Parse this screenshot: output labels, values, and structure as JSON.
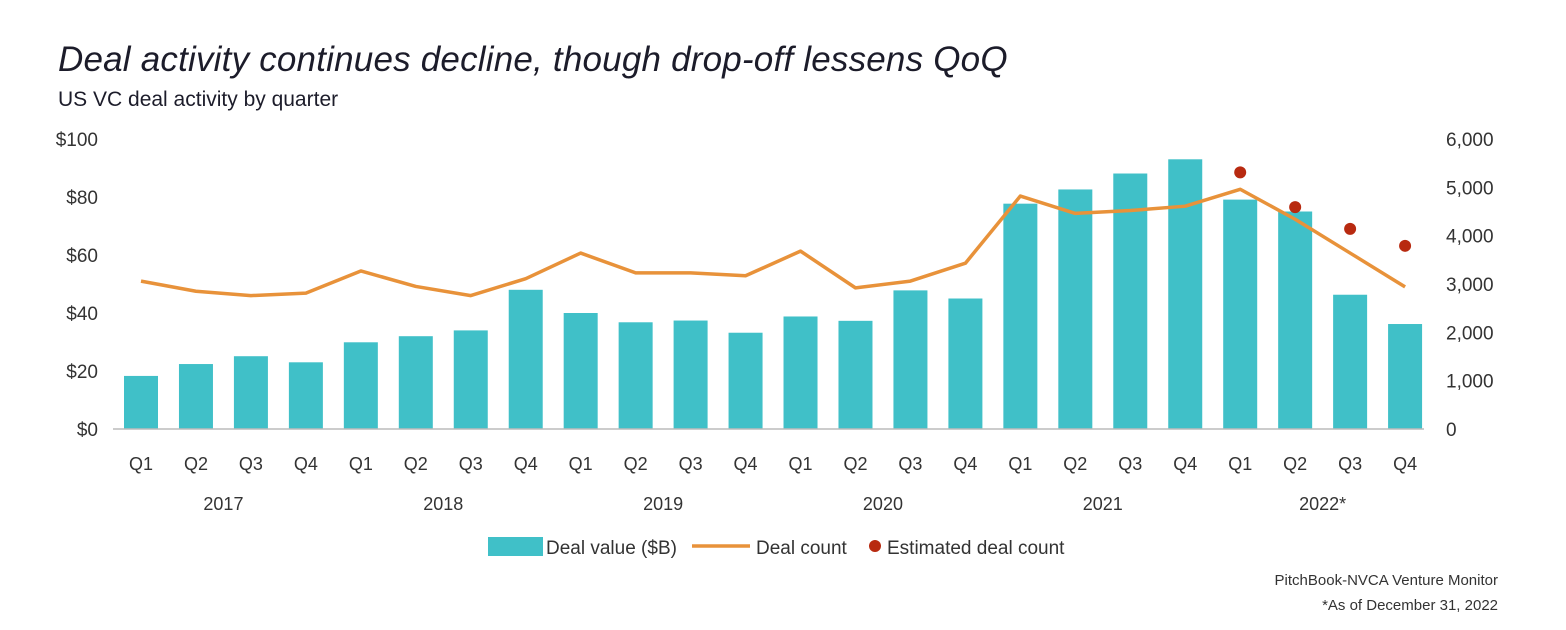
{
  "chart_data": {
    "type": "bar",
    "title": "Deal activity continues decline, though drop-off lessens QoQ",
    "subtitle": "US VC deal activity by quarter",
    "categories": [
      "Q1",
      "Q2",
      "Q3",
      "Q4",
      "Q1",
      "Q2",
      "Q3",
      "Q4",
      "Q1",
      "Q2",
      "Q3",
      "Q4",
      "Q1",
      "Q2",
      "Q3",
      "Q4",
      "Q1",
      "Q2",
      "Q3",
      "Q4",
      "Q1",
      "Q2",
      "Q3",
      "Q4"
    ],
    "years": [
      "2017",
      "2018",
      "2019",
      "2020",
      "2021",
      "2022*"
    ],
    "left_axis": {
      "ticks": [
        "$0",
        "$20",
        "$40",
        "$60",
        "$80",
        "$100"
      ],
      "ylim": [
        0,
        100
      ]
    },
    "right_axis": {
      "ticks": [
        "0",
        "1,000",
        "2,000",
        "3,000",
        "4,000",
        "5,000",
        "6,000"
      ],
      "ylim": [
        0,
        6000
      ]
    },
    "series": [
      {
        "name": "Deal value ($B)",
        "type": "bar",
        "axis": "left",
        "color": "#40c0c8",
        "values": [
          18.3,
          22.4,
          25.1,
          23.0,
          29.9,
          32.0,
          34.0,
          48.0,
          40.0,
          36.8,
          37.4,
          33.2,
          38.8,
          37.3,
          47.8,
          45.0,
          77.7,
          82.6,
          88.1,
          93.0,
          79.1,
          75.0,
          46.3,
          36.2
        ]
      },
      {
        "name": "Deal count",
        "type": "line",
        "axis": "right",
        "color": "#e8923a",
        "values": [
          3060,
          2850,
          2760,
          2810,
          3270,
          2950,
          2760,
          3110,
          3640,
          3230,
          3230,
          3170,
          3680,
          2920,
          3060,
          3430,
          4820,
          4460,
          4520,
          4610,
          4960,
          4340,
          3640,
          2940
        ]
      },
      {
        "name": "Estimated deal count",
        "type": "scatter",
        "axis": "right",
        "color": "#b82a10",
        "indices": [
          20,
          21,
          22,
          23
        ],
        "values": [
          5310,
          4590,
          4140,
          3790
        ]
      }
    ],
    "legend_position": "bottom-center"
  },
  "source": "PitchBook-NVCA Venture Monitor",
  "note": "*As of December 31, 2022"
}
